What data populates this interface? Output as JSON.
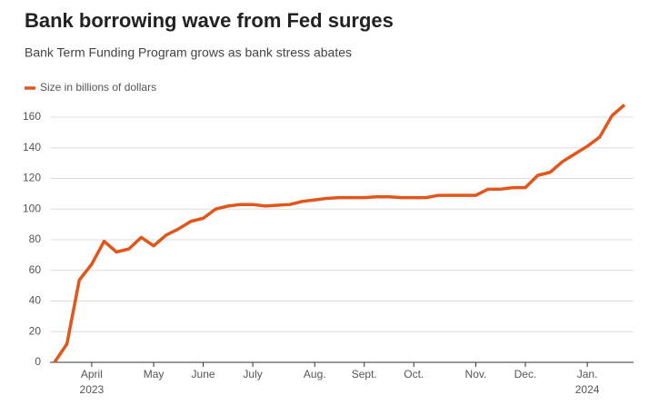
{
  "chart_data": {
    "type": "line",
    "title": "Bank borrowing wave from Fed surges",
    "subtitle": "Bank Term Funding Program grows as bank stress abates",
    "categories": [
      null,
      null,
      null,
      "April",
      null,
      null,
      null,
      null,
      "May",
      null,
      null,
      null,
      "June",
      null,
      null,
      null,
      "July",
      null,
      null,
      null,
      null,
      "Aug.",
      null,
      null,
      null,
      "Sept.",
      null,
      null,
      null,
      "Oct.",
      null,
      null,
      null,
      null,
      "Nov.",
      null,
      null,
      null,
      "Dec.",
      null,
      null,
      null,
      null,
      "Jan.",
      null,
      null,
      null
    ],
    "category_years": [
      null,
      null,
      null,
      "2023",
      null,
      null,
      null,
      null,
      null,
      null,
      null,
      null,
      null,
      null,
      null,
      null,
      null,
      null,
      null,
      null,
      null,
      null,
      null,
      null,
      null,
      null,
      null,
      null,
      null,
      null,
      null,
      null,
      null,
      null,
      null,
      null,
      null,
      null,
      null,
      null,
      null,
      null,
      null,
      "2024",
      null,
      null,
      null
    ],
    "series": [
      {
        "name": "Size in billions of dollars",
        "color": "#e0561b",
        "values": [
          0,
          12,
          53.7,
          64,
          79,
          72,
          74,
          81.5,
          76,
          83,
          87,
          92,
          94,
          100,
          102,
          103,
          103,
          102,
          102.5,
          103,
          105,
          106,
          107,
          107.5,
          107.5,
          107.5,
          108,
          108,
          107.5,
          107.5,
          107.5,
          109,
          109,
          109,
          109,
          113,
          113,
          114,
          114,
          122,
          124,
          131,
          136,
          141,
          147,
          161,
          168
        ]
      }
    ],
    "ylim": [
      0,
      168
    ],
    "yticks": [
      0,
      20,
      40,
      60,
      80,
      100,
      120,
      140,
      160
    ],
    "grid": true,
    "legend": "top-left"
  }
}
